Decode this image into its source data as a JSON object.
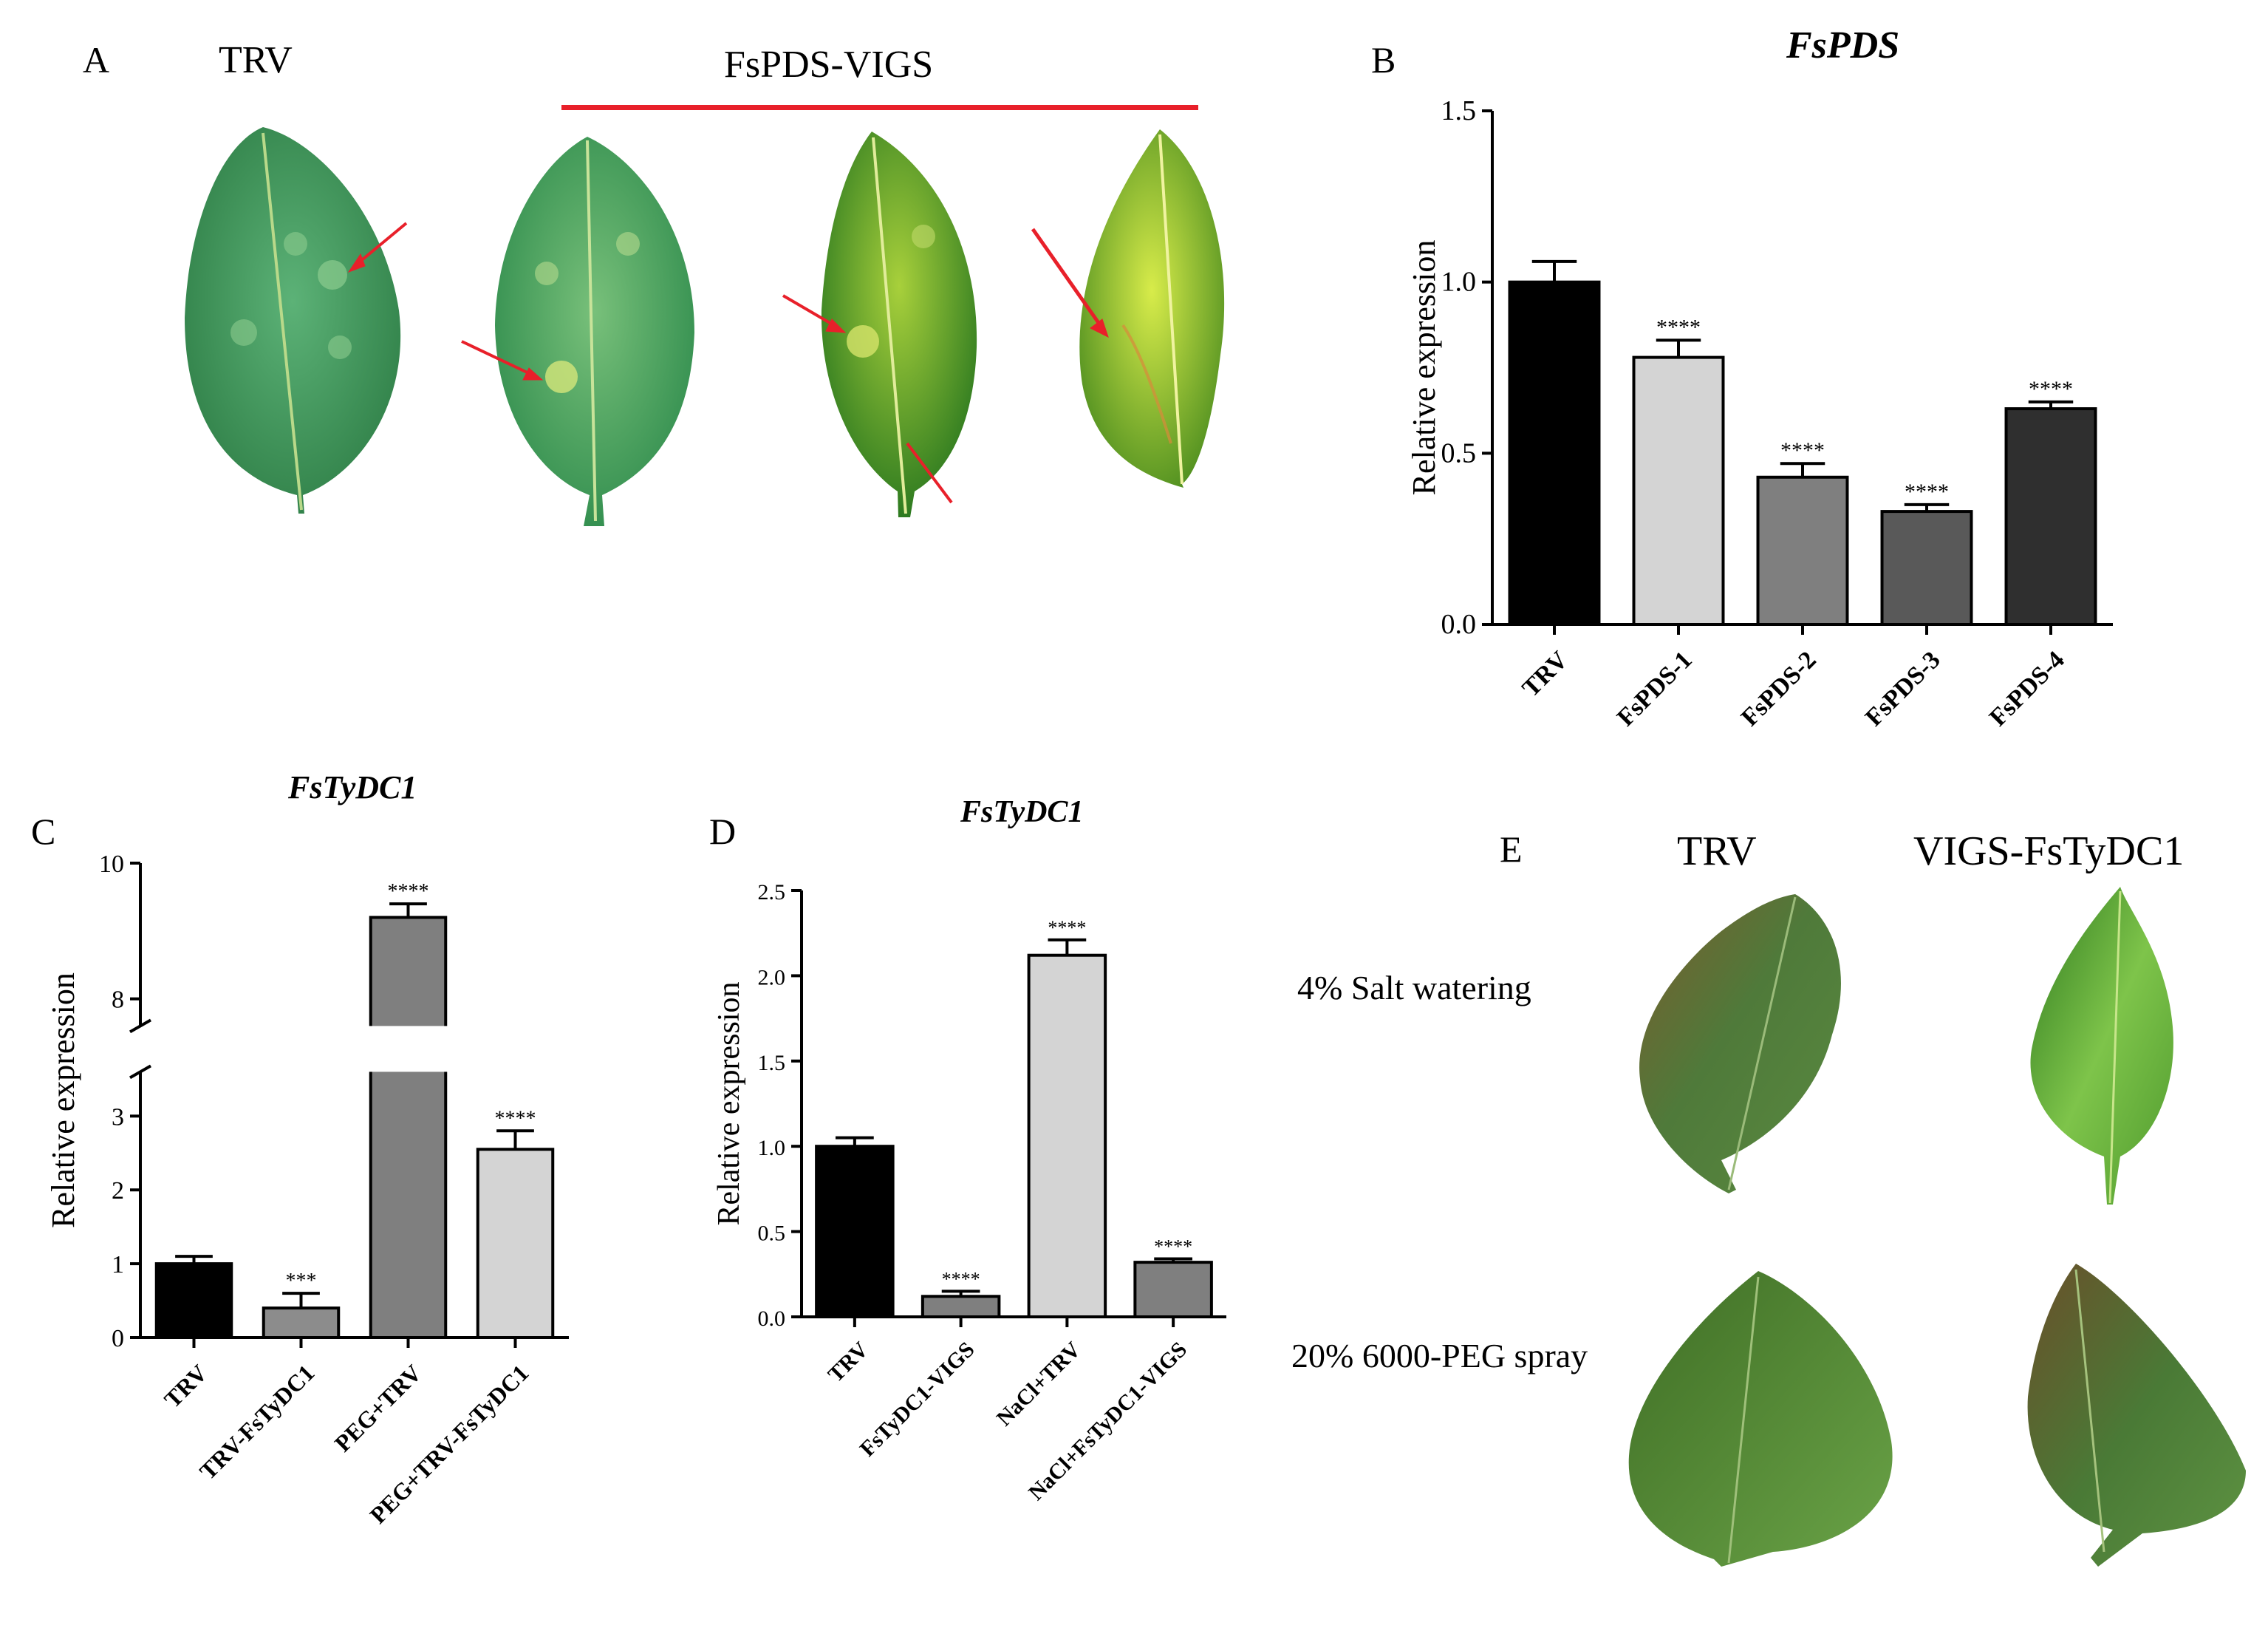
{
  "panel_labels": {
    "a": "A",
    "b": "B",
    "c": "C",
    "d": "D",
    "e": "E"
  },
  "panel_a": {
    "control_label": "TRV",
    "group_label": "FsPDS-VIGS",
    "leaves": [
      {
        "name": "TRV",
        "color": "#3f9a5c"
      },
      {
        "name": "FsPDS-VIGS 1",
        "color": "#4ea86a"
      },
      {
        "name": "FsPDS-VIGS 2",
        "color": "#4f9a2e"
      },
      {
        "name": "FsPDS-VIGS 3",
        "color": "#8fbf2a"
      }
    ],
    "arrow_color": "#e8202a"
  },
  "panel_e": {
    "col_labels": [
      "TRV",
      "VIGS-FsTyDC1"
    ],
    "row_labels": [
      "4% Salt watering",
      "20% 6000-PEG spray"
    ]
  },
  "chart_data": [
    {
      "id": "B",
      "type": "bar",
      "title": "FsPDS",
      "ylabel": "Relative expression",
      "categories": [
        "TRV",
        "FsPDS-1",
        "FsPDS-2",
        "FsPDS-3",
        "FsPDS-4"
      ],
      "values": [
        1.0,
        0.78,
        0.43,
        0.33,
        0.63
      ],
      "errors": [
        0.06,
        0.05,
        0.04,
        0.02,
        0.02
      ],
      "significance": [
        "",
        "****",
        "****",
        "****",
        "****"
      ],
      "colors": [
        "#000000",
        "#d4d4d4",
        "#7f7f7f",
        "#595959",
        "#2f2f2f"
      ],
      "ylim": [
        0,
        1.5
      ],
      "yticks": [
        "0.0",
        "0.5",
        "1.0",
        "1.5"
      ]
    },
    {
      "id": "C",
      "type": "bar",
      "title": "FsTyDC1",
      "ylabel": "Relative expression",
      "categories": [
        "TRV",
        "TRV-FsTyDC1",
        "PEG+TRV",
        "PEG+TRV-FsTyDC1"
      ],
      "values": [
        1.0,
        0.4,
        9.2,
        2.55
      ],
      "errors": [
        0.1,
        0.2,
        0.2,
        0.25
      ],
      "significance": [
        "",
        "***",
        "****",
        "****"
      ],
      "colors": [
        "#000000",
        "#8c8c8c",
        "#7f7f7f",
        "#d4d4d4"
      ],
      "ylim": [
        0,
        10
      ],
      "axis_break": [
        3.6,
        7.6
      ],
      "yticks": [
        "0",
        "1",
        "2",
        "3",
        "8",
        "10"
      ]
    },
    {
      "id": "D",
      "type": "bar",
      "title": "FsTyDC1",
      "ylabel": "Relative expression",
      "categories": [
        "TRV",
        "FsTyDC1-VIGS",
        "NaCl+TRV",
        "NaCl+FsTyDC1-VIGS"
      ],
      "values": [
        1.0,
        0.12,
        2.12,
        0.32
      ],
      "errors": [
        0.05,
        0.03,
        0.09,
        0.02
      ],
      "significance": [
        "",
        "****",
        "****",
        "****"
      ],
      "colors": [
        "#000000",
        "#7f7f7f",
        "#d4d4d4",
        "#7f7f7f"
      ],
      "ylim": [
        0,
        2.5
      ],
      "yticks": [
        "0.0",
        "0.5",
        "1.0",
        "1.5",
        "2.0",
        "2.5"
      ]
    }
  ]
}
